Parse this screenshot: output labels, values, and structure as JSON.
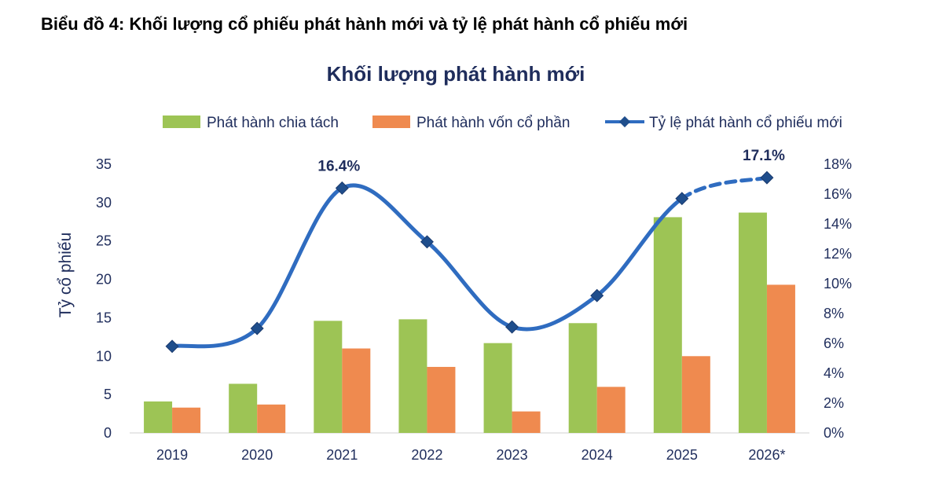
{
  "heading": "Biểu đồ 4: Khối lượng cổ phiếu phát hành mới và tỷ lệ phát hành cổ phiếu mới",
  "chart_data": {
    "type": "bar",
    "title": "Khối lượng phát hành mới",
    "categories": [
      "2019",
      "2020",
      "2021",
      "2022",
      "2023",
      "2024",
      "2025",
      "2026*"
    ],
    "series": [
      {
        "name": "Phát hành chia tách",
        "type": "bar",
        "axis": "left",
        "color": "#9dc455",
        "values": [
          4.1,
          6.4,
          14.6,
          14.8,
          11.7,
          14.3,
          28.1,
          28.7
        ]
      },
      {
        "name": "Phát hành vốn cổ phần",
        "type": "bar",
        "axis": "left",
        "color": "#ef8a4f",
        "values": [
          3.3,
          3.7,
          11.0,
          8.6,
          2.8,
          6.0,
          10.0,
          19.3
        ]
      },
      {
        "name": "Tỷ lệ phát hành cổ phiếu mới",
        "type": "line",
        "axis": "right",
        "color": "#2f6cc0",
        "marker_color": "#1f4e8c",
        "values": [
          5.8,
          7.0,
          16.4,
          12.8,
          7.1,
          9.2,
          15.7,
          17.1
        ],
        "dashed_from_index": 6
      }
    ],
    "ylabel": "Tỷ cổ phiếu",
    "ylim": [
      0,
      35
    ],
    "y_ticks": [
      "0",
      "5",
      "10",
      "15",
      "20",
      "25",
      "30",
      "35"
    ],
    "y2lim": [
      0,
      18
    ],
    "y2_ticks": [
      "0%",
      "2%",
      "4%",
      "6%",
      "8%",
      "10%",
      "12%",
      "14%",
      "16%",
      "18%"
    ],
    "annotations": [
      {
        "index": 2,
        "text": "16.4%"
      },
      {
        "index": 7,
        "text": "17.1%"
      }
    ],
    "legend": "top",
    "grid": false
  }
}
